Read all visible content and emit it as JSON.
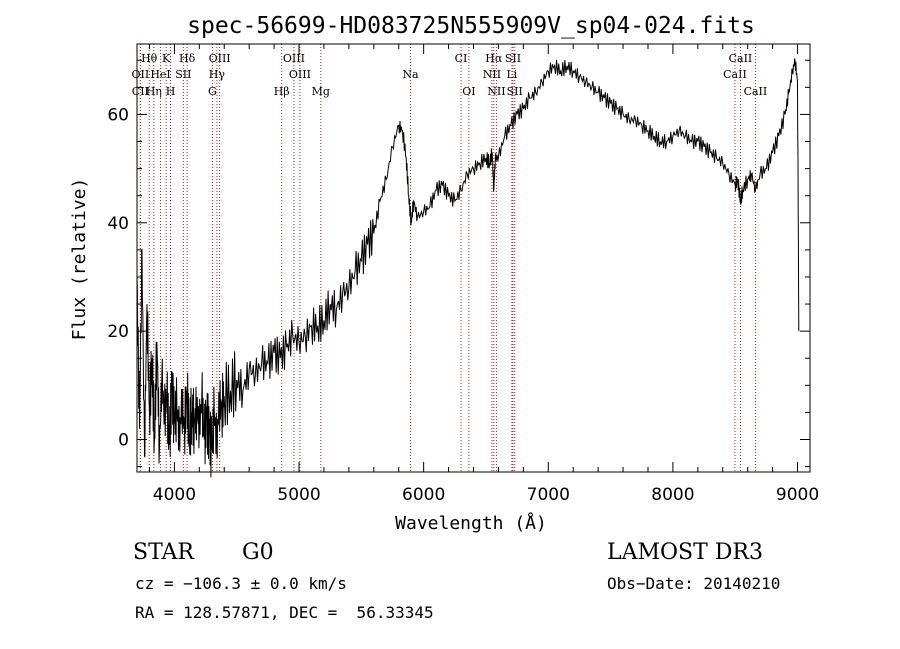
{
  "chart_data": {
    "type": "line",
    "title": "spec-56699-HD083725N555909V_sp04-024.fits",
    "xlabel": "Wavelength (Å)",
    "ylabel": "Flux (relative)",
    "xlim": [
      3700,
      9100
    ],
    "ylim": [
      -6,
      73
    ],
    "x_ticks": [
      4000,
      5000,
      6000,
      7000,
      8000,
      9000
    ],
    "y_ticks": [
      0,
      20,
      40,
      60
    ],
    "series": [
      {
        "name": "flux",
        "x": [
          3700,
          3720,
          3740,
          3760,
          3780,
          3800,
          3820,
          3840,
          3860,
          3880,
          3900,
          3920,
          3940,
          3960,
          3980,
          4000,
          4020,
          4040,
          4060,
          4080,
          4100,
          4120,
          4140,
          4160,
          4180,
          4200,
          4220,
          4240,
          4260,
          4280,
          4300,
          4320,
          4340,
          4360,
          4380,
          4400,
          4450,
          4500,
          4550,
          4600,
          4650,
          4700,
          4750,
          4800,
          4850,
          4900,
          4950,
          5000,
          5050,
          5100,
          5150,
          5200,
          5250,
          5300,
          5350,
          5400,
          5450,
          5500,
          5550,
          5600,
          5650,
          5700,
          5750,
          5800,
          5830,
          5860,
          5880,
          5900,
          5920,
          5950,
          6000,
          6050,
          6100,
          6150,
          6200,
          6250,
          6300,
          6350,
          6400,
          6450,
          6500,
          6530,
          6550,
          6563,
          6575,
          6600,
          6650,
          6700,
          6750,
          6800,
          6850,
          6900,
          6950,
          7000,
          7050,
          7100,
          7150,
          7200,
          7250,
          7300,
          7350,
          7400,
          7450,
          7500,
          7550,
          7600,
          7650,
          7700,
          7750,
          7800,
          7850,
          7900,
          7950,
          8000,
          8050,
          8100,
          8150,
          8200,
          8250,
          8300,
          8350,
          8400,
          8450,
          8500,
          8520,
          8542,
          8560,
          8600,
          8630,
          8662,
          8700,
          8750,
          8800,
          8850,
          8900,
          8930,
          8960,
          8980,
          9000,
          9010
        ],
        "y": [
          30,
          2,
          35,
          -3,
          25,
          5,
          15,
          0,
          18,
          -2,
          12,
          4,
          8,
          -1,
          10,
          3,
          6,
          0,
          7,
          2,
          9,
          1,
          5,
          3,
          6,
          2,
          8,
          0,
          4,
          1,
          -2,
          5,
          -1,
          7,
          6,
          8,
          9,
          11,
          9,
          13,
          12,
          14,
          14,
          16,
          15,
          17,
          19,
          18,
          19,
          21,
          21,
          22,
          25,
          24,
          27,
          28,
          31,
          33,
          36,
          38,
          44,
          48,
          54,
          58,
          57,
          52,
          45,
          40,
          44,
          41,
          42,
          43,
          46,
          47,
          45,
          44,
          46,
          49,
          50,
          51,
          52,
          51,
          53,
          46,
          52,
          52,
          56,
          58,
          60,
          61,
          63,
          64,
          66,
          68,
          69,
          68,
          69,
          68,
          67,
          66,
          65,
          64,
          63,
          62,
          61,
          60,
          59,
          59,
          58,
          57,
          56,
          55,
          55,
          56,
          57,
          56,
          55,
          55,
          54,
          53,
          52,
          51,
          49,
          47,
          48,
          44,
          46,
          48,
          49,
          46,
          49,
          50,
          53,
          56,
          60,
          64,
          68,
          70,
          66,
          20
        ]
      }
    ],
    "lines": [
      {
        "label": "CII",
        "wl": 3727,
        "row": 3
      },
      {
        "label": "Hθ",
        "wl": 3798,
        "row": 1
      },
      {
        "label": "OII",
        "wl": 3727,
        "row": 2
      },
      {
        "label": "Hη",
        "wl": 3835,
        "row": 3
      },
      {
        "label": "K",
        "wl": 3934,
        "row": 1
      },
      {
        "label": "HeI",
        "wl": 3889,
        "row": 2
      },
      {
        "label": "H",
        "wl": 3969,
        "row": 3
      },
      {
        "label": "SII",
        "wl": 4072,
        "row": 2
      },
      {
        "label": "Hδ",
        "wl": 4102,
        "row": 1
      },
      {
        "label": "OIII",
        "wl": 4363,
        "row": 1
      },
      {
        "label": "Hγ",
        "wl": 4341,
        "row": 2
      },
      {
        "label": "G",
        "wl": 4305,
        "row": 3
      },
      {
        "label": "Hβ",
        "wl": 4861,
        "row": 3
      },
      {
        "label": "OIII",
        "wl": 4959,
        "row": 1
      },
      {
        "label": "OIII",
        "wl": 5007,
        "row": 2
      },
      {
        "label": "Mg",
        "wl": 5175,
        "row": 3
      },
      {
        "label": "Na",
        "wl": 5894,
        "row": 2
      },
      {
        "label": "CI",
        "wl": 6300,
        "row": 1
      },
      {
        "label": "OI",
        "wl": 6363,
        "row": 3
      },
      {
        "label": "Hα",
        "wl": 6563,
        "row": 1
      },
      {
        "label": "NII",
        "wl": 6548,
        "row": 2
      },
      {
        "label": "NII",
        "wl": 6584,
        "row": 3
      },
      {
        "label": "SII",
        "wl": 6717,
        "row": 1
      },
      {
        "label": "Li",
        "wl": 6708,
        "row": 2
      },
      {
        "label": "SII",
        "wl": 6731,
        "row": 3
      },
      {
        "label": "CaII",
        "wl": 8498,
        "row": 2
      },
      {
        "label": "CaII",
        "wl": 8542,
        "row": 1
      },
      {
        "label": "CaII",
        "wl": 8662,
        "row": 3
      }
    ]
  },
  "info": {
    "class": "STAR",
    "subclass": "G0",
    "survey": "LAMOST DR3",
    "cz": "cz = −106.3 ± 0.0 km/s",
    "obs_date": "Obs−Date: 20140210",
    "coords": "RA = 128.57871, DEC =  56.33345"
  }
}
